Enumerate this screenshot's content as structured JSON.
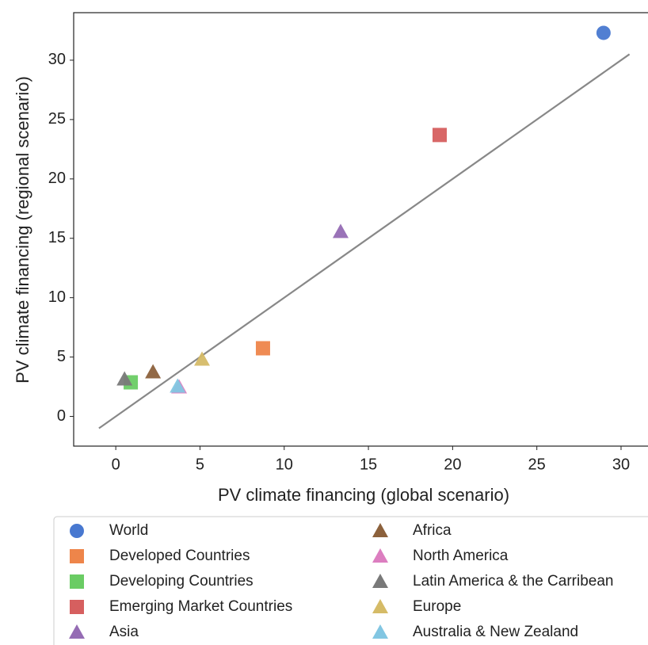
{
  "chart_data": {
    "type": "scatter",
    "x_label": "PV climate financing (global scenario)",
    "y_label": "PV climate financing (regional scenario)",
    "xlim": [
      -2.5,
      31.6
    ],
    "ylim": [
      -2.5,
      34.0
    ],
    "xticks": [
      0,
      5,
      10,
      15,
      20,
      25,
      30
    ],
    "yticks": [
      0,
      5,
      10,
      15,
      20,
      25,
      30
    ],
    "reference_line": {
      "color": "#888888",
      "x": [
        -1,
        30.5
      ],
      "y": [
        -1,
        30.5
      ]
    },
    "series": [
      {
        "name": "World",
        "color": "#4878d0",
        "marker": "circle",
        "x": [
          28.96
        ],
        "values": [
          32.3
        ]
      },
      {
        "name": "Developed Countries",
        "color": "#ee854a",
        "marker": "square",
        "x": [
          8.74
        ],
        "values": [
          5.74
        ]
      },
      {
        "name": "Developing Countries",
        "color": "#6acc64",
        "marker": "square",
        "x": [
          0.89
        ],
        "values": [
          2.87
        ]
      },
      {
        "name": "Emerging Market Countries",
        "color": "#d65f5f",
        "marker": "square",
        "x": [
          19.23
        ],
        "values": [
          23.7
        ]
      },
      {
        "name": "Asia",
        "color": "#956cb4",
        "marker": "triangle",
        "x": [
          13.35
        ],
        "values": [
          15.56
        ]
      },
      {
        "name": "Africa",
        "color": "#8c613c",
        "marker": "triangle",
        "x": [
          2.21
        ],
        "values": [
          3.74
        ]
      },
      {
        "name": "North America",
        "color": "#dc7ec0",
        "marker": "triangle",
        "x": [
          3.76
        ],
        "values": [
          2.47
        ]
      },
      {
        "name": "Latin America & the Carribean",
        "color": "#797979",
        "marker": "triangle",
        "x": [
          0.52
        ],
        "values": [
          3.14
        ]
      },
      {
        "name": "Europe",
        "color": "#d5bb67",
        "marker": "triangle",
        "x": [
          5.12
        ],
        "values": [
          4.81
        ]
      },
      {
        "name": "Australia & New Zealand",
        "color": "#82c6e2",
        "marker": "triangle",
        "x": [
          3.67
        ],
        "values": [
          2.54
        ]
      }
    ]
  }
}
